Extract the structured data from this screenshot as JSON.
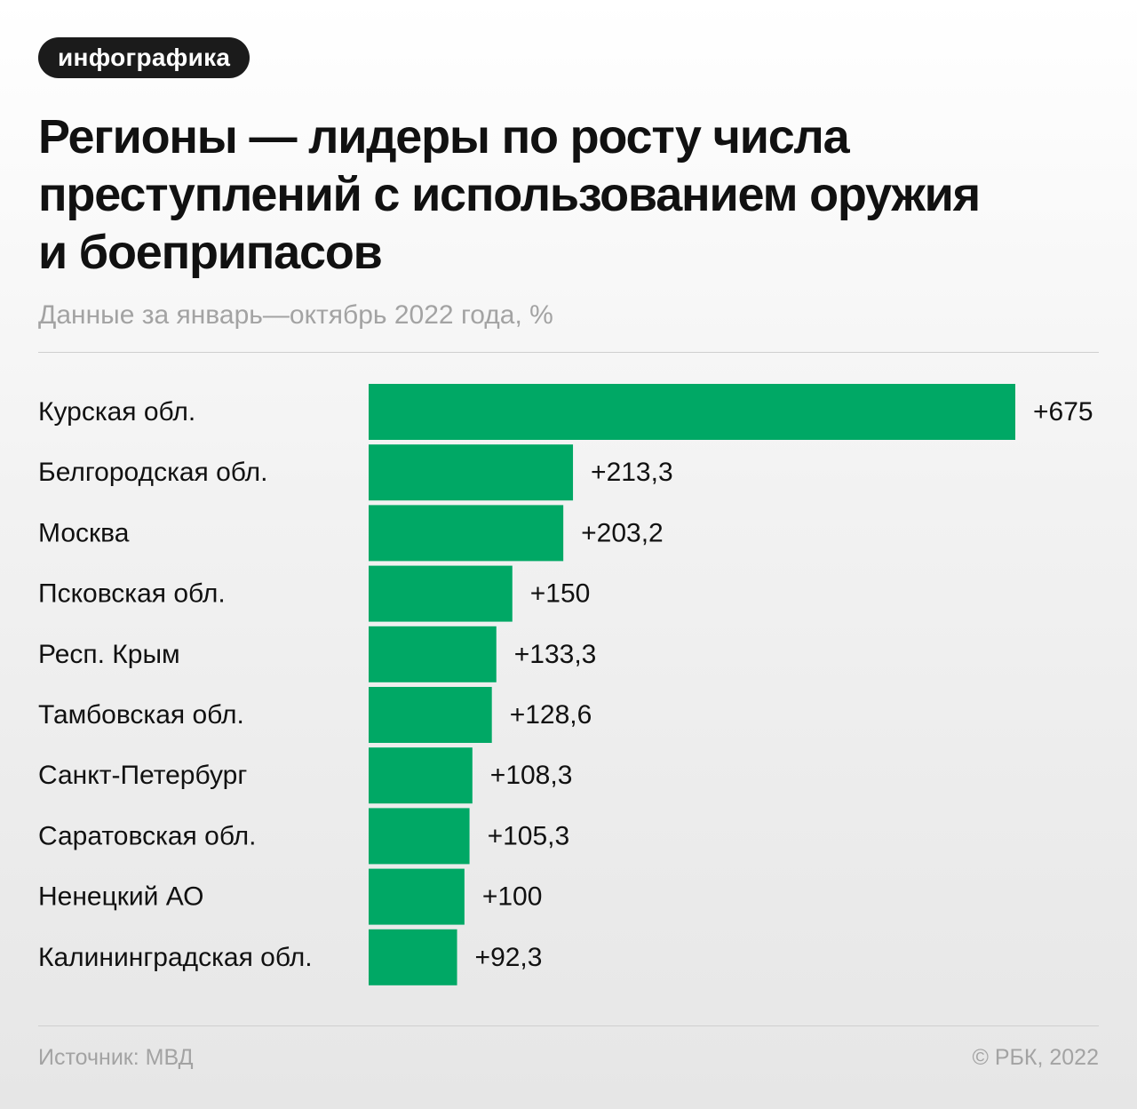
{
  "badge": "инфографика",
  "title_lines": [
    "Регионы — лидеры по росту числа",
    "преступлений с использованием оружия",
    "и боеприпасов"
  ],
  "subtitle": "Данные за январь—октябрь 2022 года, %",
  "source": "Источник: МВД",
  "copyright": "© РБК, 2022",
  "colors": {
    "bar": "#00a865",
    "text": "#111111",
    "muted": "#a3a3a3"
  },
  "chart_data": {
    "type": "bar",
    "orientation": "horizontal",
    "title": "Регионы — лидеры по росту числа преступлений с использованием оружия и боеприпасов",
    "subtitle": "Данные за январь—октябрь 2022 года, %",
    "categories": [
      "Курская обл.",
      "Белгородская обл.",
      "Москва",
      "Псковская обл.",
      "Респ. Крым",
      "Тамбовская обл.",
      "Санкт-Петербург",
      "Саратовская обл.",
      "Ненецкий АО",
      "Калининградская обл."
    ],
    "values": [
      675,
      213.3,
      203.2,
      150,
      133.3,
      128.6,
      108.3,
      105.3,
      100,
      92.3
    ],
    "value_labels": [
      "+675",
      "+213,3",
      "+203,2",
      "+150",
      "+133,3",
      "+128,6",
      "+108,3",
      "+105,3",
      "+100",
      "+92,3"
    ],
    "xlim": [
      0,
      675
    ],
    "grid": false,
    "legend": "none"
  }
}
